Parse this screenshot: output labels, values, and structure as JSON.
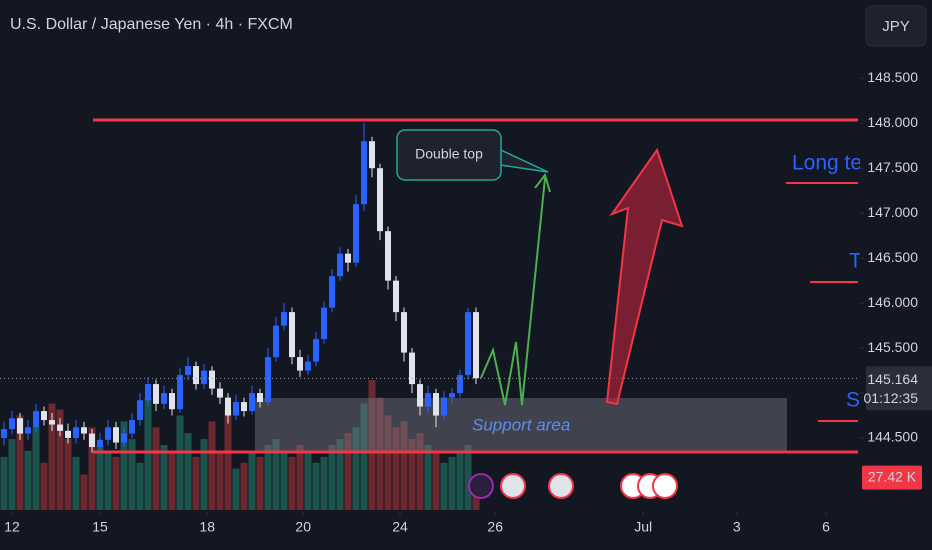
{
  "chart_data": {
    "type": "candlestick",
    "title": "U.S. Dollar / Japanese Yen · 4h · FXCM",
    "currency": "JPY",
    "x": [
      0,
      1,
      2,
      3,
      4,
      5,
      6,
      7,
      8,
      9,
      10,
      11,
      12,
      13,
      14,
      15,
      16,
      17,
      18,
      19,
      20,
      21,
      22,
      23,
      24,
      25,
      26,
      27,
      28,
      29,
      30,
      31,
      32,
      33,
      34,
      35,
      36,
      37,
      38,
      39,
      40,
      41,
      42,
      43,
      44,
      45,
      46,
      47,
      48,
      49,
      50,
      51,
      52,
      53,
      54,
      55,
      56,
      57,
      58,
      59
    ],
    "open": [
      144.5,
      144.6,
      144.72,
      144.55,
      144.62,
      144.8,
      144.7,
      144.65,
      144.58,
      144.5,
      144.62,
      144.55,
      144.4,
      144.48,
      144.62,
      144.45,
      144.55,
      144.7,
      144.92,
      145.1,
      144.88,
      145.0,
      144.82,
      145.2,
      145.3,
      145.1,
      145.25,
      145.05,
      144.95,
      144.75,
      144.9,
      144.8,
      145.0,
      144.9,
      145.4,
      145.75,
      145.9,
      145.4,
      145.25,
      145.35,
      145.6,
      145.95,
      146.3,
      146.55,
      146.45,
      147.1,
      147.8,
      147.5,
      146.8,
      146.25,
      145.9,
      145.45,
      145.1,
      144.85,
      145.0,
      144.75,
      144.95,
      145.0,
      145.2,
      145.9
    ],
    "high": [
      144.68,
      144.8,
      144.78,
      144.7,
      144.88,
      144.85,
      144.78,
      144.72,
      144.66,
      144.7,
      144.68,
      144.6,
      144.56,
      144.7,
      144.68,
      144.62,
      144.78,
      145.0,
      145.18,
      145.15,
      145.08,
      145.05,
      145.28,
      145.4,
      145.35,
      145.32,
      145.3,
      145.12,
      145.0,
      144.98,
      144.95,
      145.08,
      145.05,
      145.5,
      145.85,
      146.0,
      145.95,
      145.48,
      145.42,
      145.68,
      146.02,
      146.38,
      146.62,
      146.6,
      147.2,
      148.0,
      147.85,
      147.55,
      146.85,
      146.3,
      145.95,
      145.5,
      145.15,
      145.08,
      145.05,
      145.02,
      145.06,
      145.26,
      145.95,
      145.95
    ],
    "low": [
      144.42,
      144.54,
      144.48,
      144.48,
      144.56,
      144.64,
      144.58,
      144.52,
      144.44,
      144.44,
      144.48,
      144.34,
      144.34,
      144.42,
      144.38,
      144.4,
      144.5,
      144.64,
      144.86,
      144.8,
      144.82,
      144.75,
      144.78,
      145.14,
      145.04,
      145.05,
      144.98,
      144.88,
      144.66,
      144.7,
      144.74,
      144.76,
      144.84,
      144.86,
      145.35,
      145.7,
      145.32,
      145.18,
      145.2,
      145.3,
      145.55,
      145.9,
      146.25,
      146.35,
      146.4,
      147.02,
      147.4,
      146.7,
      146.15,
      145.8,
      145.35,
      145.0,
      144.75,
      144.78,
      144.62,
      144.7,
      144.88,
      144.95,
      145.15,
      145.1
    ],
    "close": [
      144.6,
      144.72,
      144.55,
      144.62,
      144.8,
      144.7,
      144.65,
      144.58,
      144.5,
      144.62,
      144.55,
      144.4,
      144.48,
      144.62,
      144.45,
      144.55,
      144.7,
      144.92,
      145.1,
      144.88,
      145.0,
      144.82,
      145.2,
      145.3,
      145.1,
      145.25,
      145.05,
      144.95,
      144.75,
      144.9,
      144.8,
      145.0,
      144.9,
      145.4,
      145.75,
      145.9,
      145.4,
      145.25,
      145.35,
      145.6,
      145.95,
      146.3,
      146.55,
      146.45,
      147.1,
      147.8,
      147.5,
      146.8,
      146.25,
      145.9,
      145.45,
      145.1,
      144.85,
      145.0,
      144.75,
      144.95,
      145.0,
      145.2,
      145.9,
      145.164
    ],
    "volume": [
      45,
      60,
      80,
      50,
      70,
      40,
      90,
      85,
      60,
      45,
      30,
      70,
      55,
      50,
      45,
      75,
      60,
      40,
      95,
      70,
      55,
      50,
      80,
      65,
      45,
      60,
      75,
      50,
      85,
      35,
      40,
      50,
      45,
      55,
      60,
      50,
      45,
      55,
      50,
      40,
      45,
      55,
      60,
      65,
      70,
      90,
      110,
      95,
      80,
      70,
      75,
      60,
      65,
      55,
      50,
      40,
      45,
      50,
      55,
      27.42
    ],
    "volume_label": "27.42 K",
    "vlim": [
      0,
      110
    ],
    "up_color": "#2962ff",
    "down_color": "#e0e3eb",
    "volume_up_color": "#1f5e57",
    "volume_down_color": "#7b2b30",
    "xlim": [
      -0.5,
      107
    ],
    "xticks": [
      {
        "value": 1,
        "label": "12"
      },
      {
        "value": 12,
        "label": "15"
      },
      {
        "value": 25.4,
        "label": "18"
      },
      {
        "value": 37.4,
        "label": "20"
      },
      {
        "value": 49.5,
        "label": "24"
      },
      {
        "value": 61.4,
        "label": "26"
      },
      {
        "value": 79.9,
        "label": "Jul"
      },
      {
        "value": 91.6,
        "label": "3"
      },
      {
        "value": 102.75,
        "label": "6"
      }
    ],
    "ylim": [
      143.7,
      149.37
    ],
    "yticks": [
      {
        "value": 144.5,
        "label": "144.500"
      },
      {
        "value": 145,
        "label": "145.000"
      },
      {
        "value": 145.5,
        "label": "145.500"
      },
      {
        "value": 146,
        "label": "146.000"
      },
      {
        "value": 146.5,
        "label": "146.500"
      },
      {
        "value": 147,
        "label": "147.000"
      },
      {
        "value": 147.5,
        "label": "147.500"
      },
      {
        "value": 148,
        "label": "148.000"
      },
      {
        "value": 148.5,
        "label": "148.500"
      }
    ],
    "last_price": 145.164,
    "countdown": "01:12:35",
    "grid": false,
    "annotations": [
      "Double top",
      "Support area",
      "Long ter",
      "T",
      "S"
    ]
  }
}
